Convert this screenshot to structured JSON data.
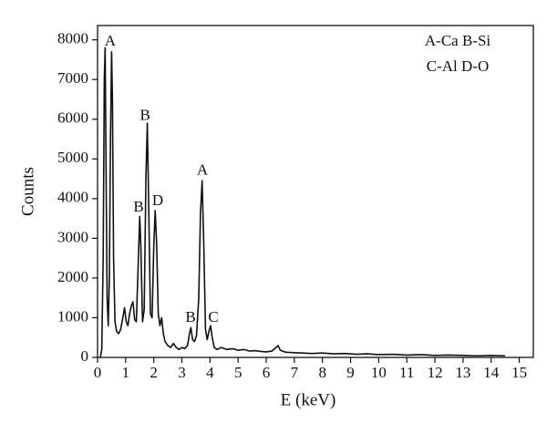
{
  "chart_data": {
    "type": "line",
    "xlabel": "E (keV)",
    "ylabel": "Counts",
    "legend_lines": [
      "A-Ca B-Si",
      "C-Al D-O"
    ],
    "x": [
      0.1,
      0.15,
      0.2,
      0.24,
      0.27,
      0.3,
      0.34,
      0.38,
      0.42,
      0.46,
      0.5,
      0.53,
      0.57,
      0.62,
      0.68,
      0.75,
      0.82,
      0.9,
      0.96,
      1.02,
      1.08,
      1.14,
      1.2,
      1.26,
      1.32,
      1.38,
      1.44,
      1.5,
      1.54,
      1.6,
      1.66,
      1.72,
      1.77,
      1.82,
      1.88,
      1.94,
      2.0,
      2.05,
      2.1,
      2.16,
      2.22,
      2.28,
      2.34,
      2.4,
      2.5,
      2.6,
      2.7,
      2.8,
      2.9,
      3.0,
      3.1,
      3.2,
      3.27,
      3.32,
      3.38,
      3.45,
      3.52,
      3.6,
      3.66,
      3.72,
      3.78,
      3.84,
      3.9,
      3.96,
      4.02,
      4.08,
      4.15,
      4.25,
      4.4,
      4.6,
      4.8,
      5.0,
      5.2,
      5.4,
      5.6,
      5.8,
      6.0,
      6.2,
      6.35,
      6.42,
      6.5,
      6.7,
      7.0,
      7.3,
      7.6,
      8.0,
      8.4,
      8.8,
      9.2,
      9.6,
      10.0,
      10.5,
      11.0,
      11.5,
      12.0,
      12.5,
      13.0,
      13.5,
      14.0,
      14.5
    ],
    "values": [
      0,
      200,
      2500,
      7000,
      7800,
      5000,
      1500,
      800,
      2000,
      5500,
      7700,
      6500,
      2500,
      900,
      650,
      600,
      700,
      1000,
      1250,
      900,
      800,
      1100,
      1300,
      1400,
      950,
      900,
      2200,
      3550,
      2800,
      900,
      1200,
      4500,
      5900,
      3800,
      1100,
      1000,
      2800,
      3700,
      2900,
      1100,
      800,
      1000,
      600,
      400,
      300,
      250,
      350,
      250,
      200,
      250,
      220,
      300,
      600,
      750,
      450,
      400,
      550,
      1500,
      3600,
      4450,
      2800,
      700,
      450,
      650,
      800,
      500,
      250,
      200,
      250,
      200,
      220,
      180,
      200,
      160,
      170,
      150,
      140,
      160,
      250,
      300,
      180,
      130,
      120,
      110,
      100,
      110,
      90,
      100,
      80,
      90,
      70,
      80,
      60,
      70,
      50,
      60,
      50,
      40,
      50,
      40
    ],
    "color": "#111111",
    "annotations": [
      {
        "text": "A",
        "x": 0.45,
        "y": 7950
      },
      {
        "text": "B",
        "x": 1.69,
        "y": 6070
      },
      {
        "text": "B",
        "x": 1.46,
        "y": 3770
      },
      {
        "text": "D",
        "x": 2.14,
        "y": 3930
      },
      {
        "text": "A",
        "x": 3.73,
        "y": 4690
      },
      {
        "text": "B",
        "x": 3.31,
        "y": 990
      },
      {
        "text": "C",
        "x": 4.12,
        "y": 990
      }
    ],
    "xlim": [
      0,
      15.5
    ],
    "ylim": [
      0,
      8360
    ],
    "xticks": [
      0,
      1,
      2,
      3,
      4,
      5,
      6,
      7,
      8,
      9,
      10,
      11,
      12,
      13,
      14,
      15
    ],
    "yticks": [
      0,
      1000,
      2000,
      3000,
      4000,
      5000,
      6000,
      7000,
      8000
    ]
  }
}
